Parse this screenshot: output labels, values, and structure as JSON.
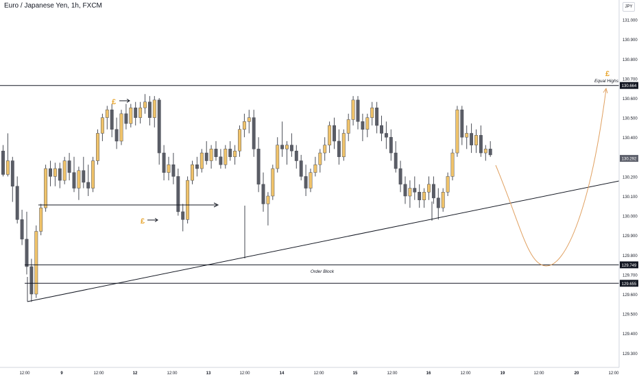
{
  "header": {
    "title": "Euro / Japanese Yen, 1h, FXCM",
    "currency": "JPY"
  },
  "chart_data": {
    "type": "candlestick",
    "title": "Euro / Japanese Yen, 1h, FXCM",
    "y_axis": {
      "range": [
        129.25,
        131.1
      ],
      "ticks": [
        "131.000",
        "130.900",
        "130.800",
        "130.700",
        "130.600",
        "130.500",
        "130.400",
        "130.300",
        "130.200",
        "130.100",
        "130.000",
        "129.900",
        "129.800",
        "129.700",
        "129.600",
        "129.500",
        "129.400",
        "129.300"
      ]
    },
    "x_axis": {
      "ticks": [
        "12:00",
        "9",
        "12:00",
        "12",
        "12:00",
        "13",
        "12:00",
        "14",
        "12:00",
        "15",
        "12:00",
        "16",
        "12:00",
        "19",
        "12:00",
        "20",
        "12:00"
      ]
    },
    "price_labels": {
      "equal_highs": "130.664",
      "current": "130.292",
      "ob_top": "129.749",
      "ob_bottom": "129.655"
    },
    "levels": {
      "equal_highs": 130.664,
      "ob_top": 129.749,
      "ob_bottom": 129.655,
      "current": 130.292
    },
    "annotations": {
      "equal_highs": "Equal Highs",
      "order_block": "Order Block",
      "pound_mark": "£"
    },
    "colors": {
      "bull": "#f0c36a",
      "bear": "#5a5d66",
      "wick": "#4a4d56",
      "line": "#131722",
      "projection": "#e0a060",
      "pound": "#e8a630"
    },
    "candles": [
      [
        130.33,
        130.36,
        130.2,
        130.21
      ],
      [
        130.21,
        130.42,
        130.2,
        130.28
      ],
      [
        130.28,
        130.3,
        130.07,
        130.15
      ],
      [
        130.15,
        130.2,
        129.96,
        129.98
      ],
      [
        129.98,
        130.03,
        129.85,
        129.88
      ],
      [
        129.88,
        130.02,
        129.7,
        129.74
      ],
      [
        129.74,
        129.78,
        129.56,
        129.6
      ],
      [
        129.6,
        129.95,
        129.58,
        129.92
      ],
      [
        129.92,
        130.06,
        129.9,
        130.04
      ],
      [
        130.04,
        130.26,
        130.02,
        130.24
      ],
      [
        130.24,
        130.28,
        130.15,
        130.2
      ],
      [
        130.2,
        130.27,
        130.15,
        130.24
      ],
      [
        130.24,
        130.27,
        130.14,
        130.18
      ],
      [
        130.18,
        130.3,
        130.16,
        130.28
      ],
      [
        130.28,
        130.32,
        130.18,
        130.22
      ],
      [
        130.22,
        130.3,
        130.12,
        130.14
      ],
      [
        130.14,
        130.25,
        130.08,
        130.23
      ],
      [
        130.23,
        130.3,
        130.14,
        130.17
      ],
      [
        130.17,
        130.26,
        130.1,
        130.14
      ],
      [
        130.14,
        130.3,
        130.12,
        130.28
      ],
      [
        130.28,
        130.44,
        130.26,
        130.42
      ],
      [
        130.42,
        130.52,
        130.38,
        130.5
      ],
      [
        130.5,
        130.56,
        130.44,
        130.54
      ],
      [
        130.54,
        130.57,
        130.4,
        130.44
      ],
      [
        130.44,
        130.5,
        130.34,
        130.38
      ],
      [
        130.38,
        130.54,
        130.36,
        130.52
      ],
      [
        130.52,
        130.57,
        130.44,
        130.47
      ],
      [
        130.47,
        130.57,
        130.45,
        130.55
      ],
      [
        130.55,
        130.58,
        130.46,
        130.5
      ],
      [
        130.5,
        130.58,
        130.47,
        130.55
      ],
      [
        130.55,
        130.62,
        130.52,
        130.58
      ],
      [
        130.58,
        130.61,
        130.46,
        130.5
      ],
      [
        130.5,
        130.61,
        130.45,
        130.59
      ],
      [
        130.59,
        130.6,
        130.26,
        130.32
      ],
      [
        130.32,
        130.36,
        130.18,
        130.22
      ],
      [
        130.22,
        130.3,
        130.18,
        130.26
      ],
      [
        130.26,
        130.32,
        130.16,
        130.2
      ],
      [
        130.2,
        130.24,
        130.0,
        130.02
      ],
      [
        130.02,
        130.06,
        129.92,
        129.98
      ],
      [
        129.98,
        130.2,
        129.96,
        130.18
      ],
      [
        130.18,
        130.28,
        130.16,
        130.26
      ],
      [
        130.26,
        130.3,
        130.2,
        130.24
      ],
      [
        130.24,
        130.34,
        130.22,
        130.32
      ],
      [
        130.32,
        130.38,
        130.26,
        130.28
      ],
      [
        130.28,
        130.36,
        130.24,
        130.34
      ],
      [
        130.34,
        130.38,
        130.28,
        130.3
      ],
      [
        130.3,
        130.34,
        130.24,
        130.26
      ],
      [
        130.26,
        130.36,
        130.24,
        130.34
      ],
      [
        130.34,
        130.38,
        130.28,
        130.3
      ],
      [
        130.3,
        130.36,
        130.26,
        130.33
      ],
      [
        130.33,
        130.46,
        130.3,
        130.44
      ],
      [
        130.44,
        130.52,
        130.4,
        130.48
      ],
      [
        130.48,
        130.54,
        130.42,
        130.5
      ],
      [
        130.5,
        130.54,
        130.3,
        130.34
      ],
      [
        130.34,
        130.4,
        130.12,
        130.16
      ],
      [
        130.16,
        130.22,
        130.02,
        130.06
      ],
      [
        130.06,
        130.12,
        129.95,
        130.1
      ],
      [
        130.1,
        130.26,
        130.08,
        130.24
      ],
      [
        130.24,
        130.4,
        130.22,
        130.36
      ],
      [
        130.36,
        130.48,
        130.3,
        130.34
      ],
      [
        130.34,
        130.38,
        130.26,
        130.36
      ],
      [
        130.36,
        130.42,
        130.3,
        130.33
      ],
      [
        130.33,
        130.36,
        130.24,
        130.28
      ],
      [
        130.28,
        130.31,
        130.18,
        130.2
      ],
      [
        130.2,
        130.26,
        130.1,
        130.14
      ],
      [
        130.14,
        130.24,
        130.12,
        130.22
      ],
      [
        130.22,
        130.3,
        130.2,
        130.26
      ],
      [
        130.26,
        130.34,
        130.22,
        130.32
      ],
      [
        130.32,
        130.4,
        130.28,
        130.36
      ],
      [
        130.36,
        130.48,
        130.32,
        130.46
      ],
      [
        130.46,
        130.5,
        130.34,
        130.38
      ],
      [
        130.38,
        130.44,
        130.26,
        130.3
      ],
      [
        130.3,
        130.44,
        130.28,
        130.42
      ],
      [
        130.42,
        130.52,
        130.38,
        130.49
      ],
      [
        130.49,
        130.61,
        130.46,
        130.59
      ],
      [
        130.59,
        130.61,
        130.44,
        130.48
      ],
      [
        130.48,
        130.52,
        130.38,
        130.44
      ],
      [
        130.44,
        130.52,
        130.4,
        130.5
      ],
      [
        130.5,
        130.58,
        130.46,
        130.55
      ],
      [
        130.55,
        130.58,
        130.42,
        130.46
      ],
      [
        130.46,
        130.51,
        130.38,
        130.42
      ],
      [
        130.42,
        130.48,
        130.34,
        130.4
      ],
      [
        130.4,
        130.44,
        130.28,
        130.32
      ],
      [
        130.32,
        130.38,
        130.22,
        130.24
      ],
      [
        130.24,
        130.28,
        130.12,
        130.16
      ],
      [
        130.16,
        130.2,
        130.06,
        130.1
      ],
      [
        130.1,
        130.18,
        130.04,
        130.14
      ],
      [
        130.14,
        130.2,
        130.08,
        130.12
      ],
      [
        130.12,
        130.16,
        130.04,
        130.08
      ],
      [
        130.08,
        130.14,
        130.04,
        130.12
      ],
      [
        130.12,
        130.2,
        130.08,
        130.16
      ],
      [
        130.16,
        130.2,
        130.06,
        130.09
      ],
      [
        130.09,
        130.14,
        129.98,
        130.04
      ],
      [
        130.04,
        130.14,
        130.02,
        130.12
      ],
      [
        130.12,
        130.22,
        130.1,
        130.2
      ],
      [
        130.2,
        130.34,
        130.18,
        130.32
      ],
      [
        130.32,
        130.56,
        130.3,
        130.54
      ],
      [
        130.54,
        130.56,
        130.36,
        130.4
      ],
      [
        130.4,
        130.46,
        130.34,
        130.42
      ],
      [
        130.42,
        130.47,
        130.32,
        130.36
      ],
      [
        130.36,
        130.44,
        130.32,
        130.41
      ],
      [
        130.41,
        130.46,
        130.3,
        130.32
      ],
      [
        130.32,
        130.36,
        130.28,
        130.34
      ],
      [
        130.34,
        130.38,
        130.3,
        130.31
      ]
    ]
  }
}
